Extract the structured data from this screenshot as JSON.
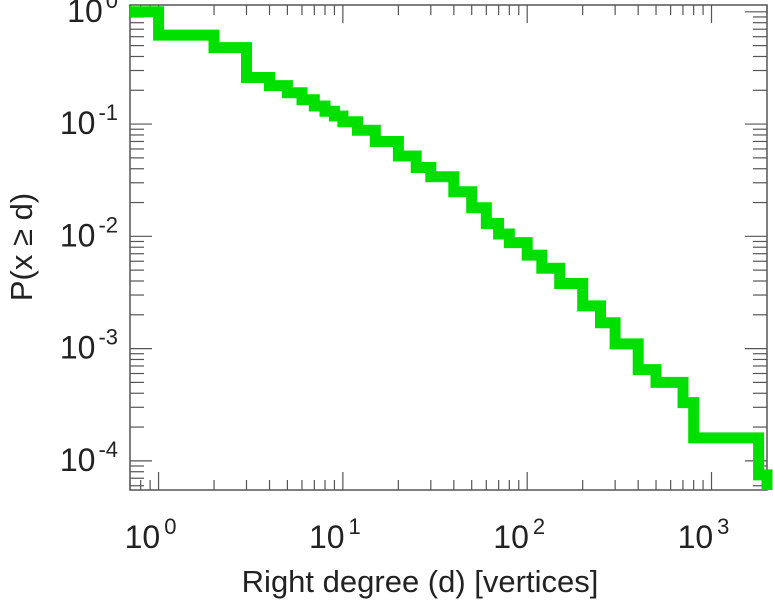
{
  "chart_data": {
    "type": "line",
    "title": "",
    "xlabel": "Right degree (d) [vertices]",
    "ylabel": "P(x ≥ d)",
    "x_scale": "log",
    "y_scale": "log",
    "xlim": [
      0.7,
      2000
    ],
    "ylim": [
      5.5e-05,
      1.15
    ],
    "x_ticks": [
      {
        "base": "10",
        "exp": "0",
        "value": 1
      },
      {
        "base": "10",
        "exp": "1",
        "value": 10
      },
      {
        "base": "10",
        "exp": "2",
        "value": 100
      },
      {
        "base": "10",
        "exp": "3",
        "value": 1000
      }
    ],
    "y_ticks": [
      {
        "base": "10",
        "exp": "0",
        "value": 1
      },
      {
        "base": "10",
        "exp": "-1",
        "value": 0.1
      },
      {
        "base": "10",
        "exp": "-2",
        "value": 0.01
      },
      {
        "base": "10",
        "exp": "-3",
        "value": 0.001
      },
      {
        "base": "10",
        "exp": "-4",
        "value": 0.0001
      }
    ],
    "grid": false,
    "series": [
      {
        "color": "#00e000",
        "step": true,
        "x": [
          0.7,
          1,
          2,
          3,
          4,
          5,
          6,
          7,
          8,
          9,
          10,
          12,
          15,
          20,
          25,
          30,
          40,
          50,
          60,
          70,
          80,
          100,
          120,
          150,
          200,
          250,
          300,
          400,
          500,
          700,
          800,
          1000,
          1800,
          2000
        ],
        "y": [
          1.0,
          0.62,
          0.48,
          0.26,
          0.22,
          0.19,
          0.165,
          0.145,
          0.13,
          0.118,
          0.105,
          0.088,
          0.07,
          0.052,
          0.041,
          0.034,
          0.025,
          0.018,
          0.013,
          0.0105,
          0.0088,
          0.0068,
          0.0052,
          0.0038,
          0.0024,
          0.0017,
          0.0011,
          0.00065,
          0.0005,
          0.00033,
          0.00016,
          0.00016,
          7.5e-05,
          5.5e-05
        ]
      }
    ]
  }
}
